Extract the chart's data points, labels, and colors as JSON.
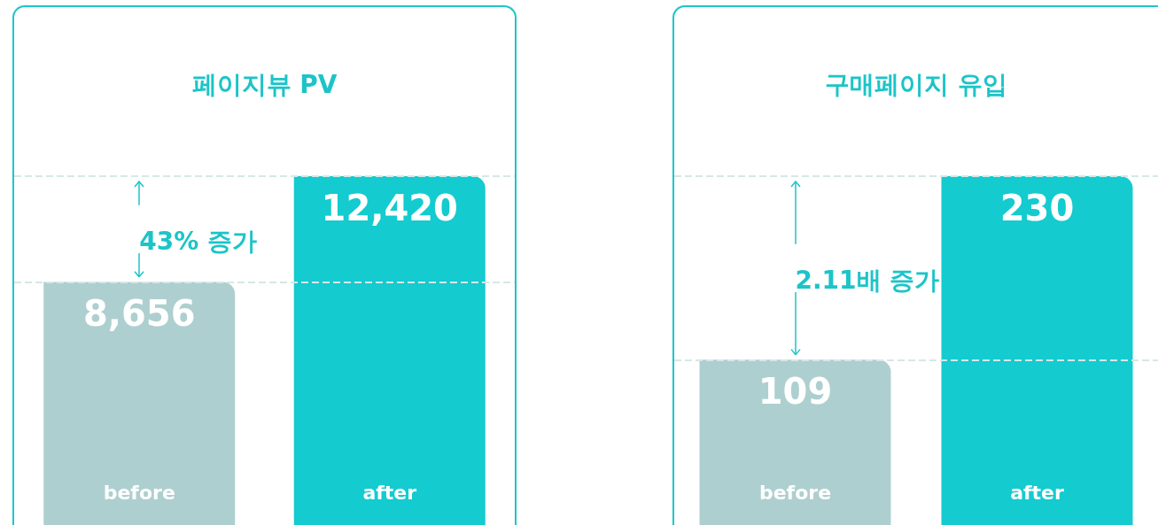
{
  "chart_data": [
    {
      "type": "bar",
      "title": "페이지뷰 PV",
      "categories": [
        "before",
        "after"
      ],
      "values": [
        8656,
        12420
      ],
      "value_labels": [
        "8,656",
        "12,420"
      ],
      "colors": [
        "#aecfcf",
        "#14cbcf"
      ],
      "tick_labels": "x",
      "ref_lines": [
        {
          "axis": "y",
          "value": 12420,
          "line_style": "dashed",
          "color": "#d5e8e6"
        },
        {
          "axis": "y",
          "value": 8656,
          "line_style": "dashed",
          "color": "#d5e8e6"
        }
      ],
      "annotations": [
        "43% 증가"
      ]
    },
    {
      "type": "bar",
      "title": "구매페이지 유입",
      "categories": [
        "before",
        "after"
      ],
      "values": [
        109,
        230
      ],
      "colors": [
        "#aecfcf",
        "#14cbcf"
      ],
      "tick_labels": "x",
      "data_labels": true,
      "ref_lines": [
        {
          "axis": "y",
          "value": 230,
          "line_style": "dashed",
          "color": "#d5e8e6"
        },
        {
          "axis": "y",
          "value": 109,
          "line_style": "dashed",
          "color": "#d5e8e6"
        }
      ],
      "annotations": [
        "2.11배 증가"
      ]
    }
  ]
}
